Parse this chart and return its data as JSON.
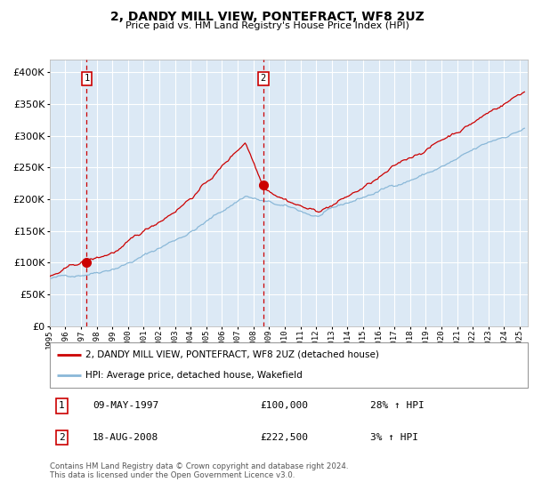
{
  "title": "2, DANDY MILL VIEW, PONTEFRACT, WF8 2UZ",
  "subtitle": "Price paid vs. HM Land Registry's House Price Index (HPI)",
  "plot_bg": "#dce9f5",
  "red_line_label": "2, DANDY MILL VIEW, PONTEFRACT, WF8 2UZ (detached house)",
  "blue_line_label": "HPI: Average price, detached house, Wakefield",
  "sale1_date": "09-MAY-1997",
  "sale1_price": 100000,
  "sale1_hpi": "28% ↑ HPI",
  "sale2_date": "18-AUG-2008",
  "sale2_price": 222500,
  "sale2_hpi": "3% ↑ HPI",
  "footer": "Contains HM Land Registry data © Crown copyright and database right 2024.\nThis data is licensed under the Open Government Licence v3.0.",
  "ylim": [
    0,
    420000
  ],
  "yticks": [
    0,
    50000,
    100000,
    150000,
    200000,
    250000,
    300000,
    350000,
    400000
  ],
  "sale1_x": 1997.36,
  "sale2_x": 2008.63,
  "xlim_start": 1995,
  "xlim_end": 2025.5
}
